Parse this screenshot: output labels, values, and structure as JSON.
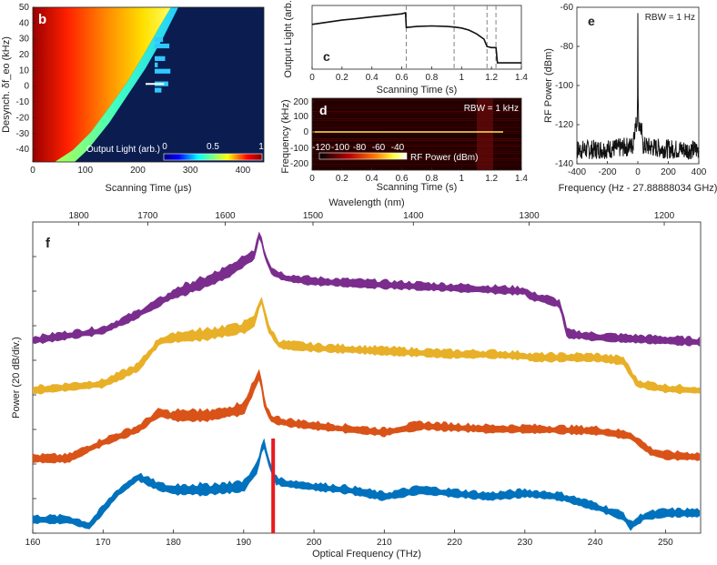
{
  "chart_data": [
    {
      "panel": "b",
      "type": "heatmap",
      "xlabel": "Scanning Time (μs)",
      "ylabel": "Desynch. δf_eo (kHz)",
      "xlim": [
        0,
        440
      ],
      "ylim": [
        -48,
        50
      ],
      "x_ticks": [
        0,
        100,
        200,
        300,
        400
      ],
      "y_ticks": [
        50,
        40,
        30,
        20,
        10,
        0,
        -10,
        -20,
        -30,
        -40
      ],
      "colorbar_label": "Output Light (arb.)",
      "colorbar_ticks": [
        "0",
        "0.5",
        "1"
      ],
      "background_color": "#0a1a4a"
    },
    {
      "panel": "c",
      "type": "line",
      "xlabel": "Scanning Time (s)",
      "ylabel": "Output Light (arb.)",
      "xlim": [
        0,
        1.4
      ],
      "x_ticks": [
        "0",
        "0.2",
        "0.4",
        "0.6",
        "0.8",
        "1",
        "1.2",
        "1.4"
      ],
      "dashed_x": [
        0.63,
        0.95,
        1.17,
        1.23
      ],
      "x": [
        0,
        0.1,
        0.2,
        0.3,
        0.4,
        0.5,
        0.6,
        0.625,
        0.63,
        0.7,
        0.8,
        0.9,
        0.95,
        1.0,
        1.05,
        1.1,
        1.15,
        1.17,
        1.2,
        1.23,
        1.24,
        1.3,
        1.4
      ],
      "values": [
        0.78,
        0.82,
        0.86,
        0.89,
        0.92,
        0.95,
        0.98,
        1.0,
        0.72,
        0.74,
        0.75,
        0.74,
        0.73,
        0.71,
        0.67,
        0.6,
        0.5,
        0.36,
        0.34,
        0.34,
        0.05,
        0.05,
        0.05
      ]
    },
    {
      "panel": "d",
      "type": "heatmap",
      "xlabel": "Scanning Time (s)",
      "ylabel": "Frequency (kHz)",
      "xlim": [
        0,
        1.4
      ],
      "x_ticks": [
        "0",
        "0.2",
        "0.4",
        "0.6",
        "0.8",
        "1",
        "1.2",
        "1.4"
      ],
      "y_ticks": [
        "200",
        "100",
        "0",
        "-100",
        "-200"
      ],
      "annotation": "RBW = 1 kHz",
      "colorbar_label": "RF Power (dBm)",
      "colorbar_ticks": [
        "-120",
        "-100",
        "-80",
        "-60",
        "-40"
      ]
    },
    {
      "panel": "e",
      "type": "line",
      "xlabel": "Frequency (Hz - 27.88888034 GHz)",
      "ylabel": "RF Power (dBm)",
      "xlim": [
        -400,
        400
      ],
      "ylim": [
        -140,
        -60
      ],
      "x_ticks": [
        "-400",
        "-200",
        "0",
        "200",
        "400"
      ],
      "y_ticks": [
        "-60",
        "-80",
        "-100",
        "-120",
        "-140"
      ],
      "annotation": "RBW = 1 Hz",
      "peak": {
        "x": 0,
        "y": -63
      }
    },
    {
      "panel": "f",
      "type": "line",
      "xlabel": "Optical Frequency (THz)",
      "ylabel": "Power (20 dB/div.)",
      "top_xlabel": "Wavelength (nm)",
      "xlim": [
        160,
        255
      ],
      "x_ticks": [
        "160",
        "170",
        "180",
        "190",
        "200",
        "210",
        "220",
        "230",
        "240",
        "250"
      ],
      "top_ticks": [
        "1800",
        "1700",
        "1600",
        "1500",
        "1400",
        "1300",
        "1200"
      ],
      "series": [
        {
          "color": "#7b2d8e",
          "x": [
            160,
            170,
            175,
            180,
            185,
            188,
            190,
            191.5,
            192.3,
            193,
            194,
            196,
            200,
            210,
            220,
            225,
            230,
            230.8,
            233,
            235,
            236,
            240,
            250,
            255
          ],
          "values": [
            0,
            3,
            8,
            14,
            18,
            21,
            24,
            26,
            33,
            26,
            21,
            19,
            18,
            17,
            16,
            15.5,
            15,
            13.5,
            12.5,
            11,
            2,
            1,
            0,
            -0.5
          ]
        },
        {
          "color": "#e8b028",
          "x": [
            160,
            170,
            175,
            178,
            180,
            185,
            190,
            191.5,
            192.5,
            193.5,
            195,
            200,
            210,
            220,
            225,
            230,
            231,
            240,
            244,
            246,
            250,
            255
          ],
          "values": [
            0,
            2,
            7,
            15,
            16,
            17,
            19,
            21,
            28,
            19,
            14,
            13,
            12,
            11,
            11,
            10.5,
            10,
            10,
            9,
            2,
            0.5,
            0
          ]
        },
        {
          "color": "#d95319",
          "x": [
            160,
            165,
            167,
            170,
            175,
            178,
            180,
            185,
            190,
            192.3,
            193,
            194,
            196,
            200,
            205,
            210,
            215,
            220,
            225,
            230,
            231,
            240,
            245,
            248,
            250,
            255
          ],
          "values": [
            0,
            0,
            2,
            5,
            9,
            14,
            13,
            13,
            15,
            26,
            16,
            12,
            11,
            10,
            9,
            8,
            10,
            9.5,
            9,
            9,
            9,
            8.5,
            7,
            2,
            1,
            0.5
          ]
        },
        {
          "color": "#0072bd",
          "x": [
            160,
            165,
            168,
            170,
            172,
            175,
            178,
            180,
            185,
            190,
            192,
            192.8,
            193.5,
            194.5,
            196,
            200,
            205,
            210,
            215,
            220,
            225,
            230,
            235,
            240,
            244,
            245,
            247,
            250,
            255
          ],
          "values": [
            0,
            0,
            -2,
            3,
            8,
            13,
            10,
            9,
            9,
            10,
            16,
            24,
            18,
            12,
            11,
            10,
            9,
            7,
            9,
            8,
            7,
            8,
            7,
            4,
            1,
            -2,
            1,
            2,
            2
          ]
        }
      ],
      "marker": {
        "x": 194.2,
        "color": "#e8191e"
      }
    }
  ],
  "panels": {
    "b": {
      "letter": "b"
    },
    "c": {
      "letter": "c"
    },
    "d": {
      "letter": "d"
    },
    "e": {
      "letter": "e"
    },
    "f": {
      "letter": "f"
    }
  }
}
